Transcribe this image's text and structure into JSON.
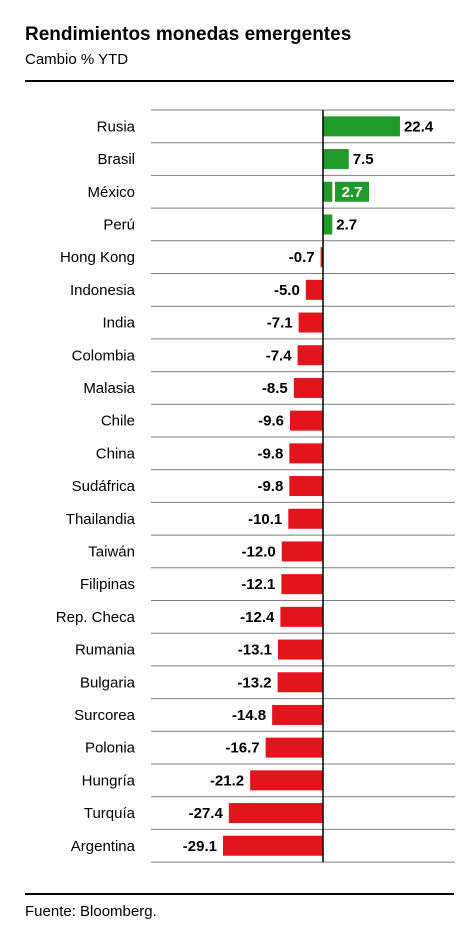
{
  "title": "Rendimientos monedas emergentes",
  "subtitle": "Cambio % YTD",
  "source": "Fuente: Bloomberg.",
  "chart_data": {
    "type": "bar",
    "orientation": "horizontal",
    "categories": [
      "Rusia",
      "Brasil",
      "México",
      "Perú",
      "Hong Kong",
      "Indonesia",
      "India",
      "Colombia",
      "Malasia",
      "Chile",
      "China",
      "Sudáfrica",
      "Thailandia",
      "Taiwán",
      "Filipinas",
      "Rep. Checa",
      "Rumania",
      "Bulgaria",
      "Surcorea",
      "Polonia",
      "Hungría",
      "Turquía",
      "Argentina"
    ],
    "values": [
      22.4,
      7.5,
      2.7,
      2.7,
      -0.7,
      -5.0,
      -7.1,
      -7.4,
      -8.5,
      -9.6,
      -9.8,
      -9.8,
      -10.1,
      -12.0,
      -12.1,
      -12.4,
      -13.1,
      -13.2,
      -14.8,
      -16.7,
      -21.2,
      -27.4,
      -29.1
    ],
    "value_labels": [
      "22.4",
      "7.5",
      "2.7",
      "2.7",
      "-0.7",
      "-5.0",
      "-7.1",
      "-7.4",
      "-8.5",
      "-9.6",
      "-9.8",
      "-9.8",
      "-10.1",
      "-12.0",
      "-12.1",
      "-12.4",
      "-13.1",
      "-13.2",
      "-14.8",
      "-16.7",
      "-21.2",
      "-27.4",
      "-29.1"
    ],
    "xlim": [
      -29.1,
      22.4
    ],
    "grid": "horizontal",
    "colors": {
      "positive": "#1f9a2b",
      "negative": "#e2141c",
      "grid": "#7f7f7f",
      "axis": "#000000"
    }
  }
}
